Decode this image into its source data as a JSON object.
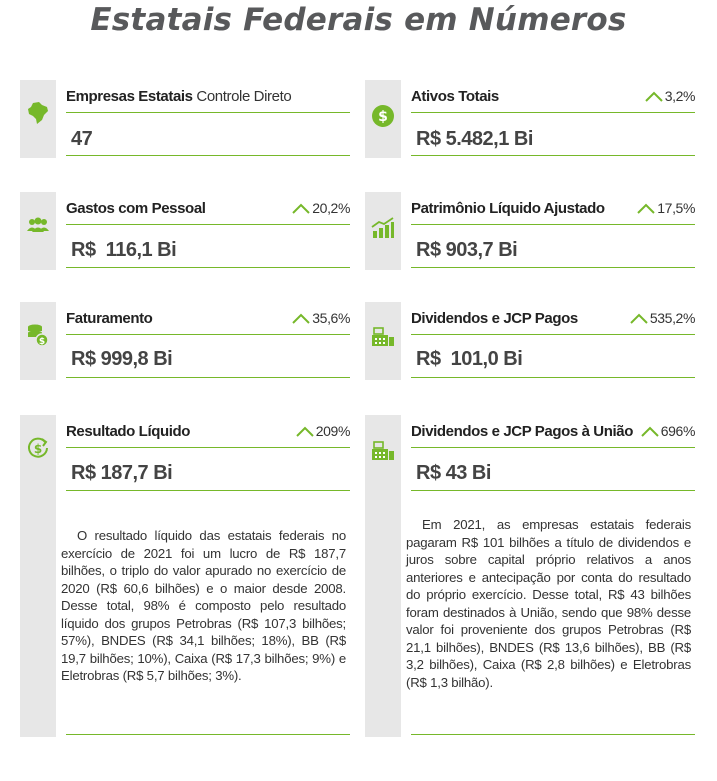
{
  "page_title": "Estatais Federais em Números",
  "colors": {
    "accent_green": "#76b82a",
    "side_gray": "#e7e7e7",
    "title_gray": "#58595b"
  },
  "cards": {
    "empresas": {
      "icon": "brazil-map-icon",
      "label": "Empresas Estatais",
      "sublabel": "Controle Direto",
      "change": "",
      "value": "47"
    },
    "ativos": {
      "icon": "dollar-coin-icon",
      "label": "Ativos Totais",
      "change": "3,2%",
      "value": "R$ 5.482,1 Bi"
    },
    "gastos": {
      "icon": "people-icon",
      "label": "Gastos com Pessoal",
      "change": "20,2%",
      "value": "R$  116,1 Bi"
    },
    "patrimonio": {
      "icon": "bar-chart-growth-icon",
      "label": "Patrimônio Líquido Ajustado",
      "change": "17,5%",
      "value": "R$ 903,7 Bi"
    },
    "faturamento": {
      "icon": "coin-stack-icon",
      "label": "Faturamento",
      "change": "35,6%",
      "value": "R$ 999,8 Bi"
    },
    "dividendos": {
      "icon": "cash-register-icon",
      "label": "Dividendos e JCP Pagos",
      "change": "535,2%",
      "value": "R$  101,0 Bi"
    },
    "resultado": {
      "icon": "dollar-cycle-icon",
      "label": "Resultado Líquido",
      "change": "209%",
      "value": "R$ 187,7 Bi",
      "description": "O resultado líquido das estatais federais no exercício de 2021 foi um lucro de R$ 187,7 bilhões, o triplo do valor apurado no exercício de 2020 (R$ 60,6 bilhões) e o maior desde 2008. Desse total, 98% é composto pelo resultado líquido dos grupos Petrobras (R$ 107,3 bilhões; 57%), BNDES (R$ 34,1 bilhões; 18%), BB (R$ 19,7 bilhões; 10%), Caixa (R$ 17,3 bilhões; 9%) e Eletrobras (R$ 5,7 bilhões; 3%)."
    },
    "dividendos_uniao": {
      "icon": "cash-register-icon",
      "label": "Dividendos e JCP Pagos à União",
      "change": "696%",
      "value": "R$ 43 Bi",
      "description": "Em 2021, as empresas estatais federais pagaram R$ 101 bilhões a título de dividendos e juros sobre capital próprio relativos a anos anteriores e antecipação por conta do resultado do próprio exercício. Desse total, R$ 43 bilhões foram destinados à União, sendo que 98% desse valor foi proveniente dos grupos Petrobras (R$ 21,1 bilhões), BNDES (R$ 13,6 bilhões), BB (R$ 3,2 bilhões), Caixa (R$ 2,8 bilhões) e Eletrobras (R$ 1,3 bilhão)."
    }
  }
}
